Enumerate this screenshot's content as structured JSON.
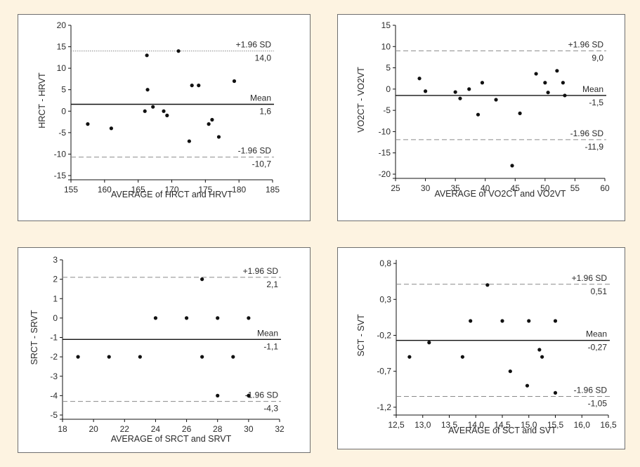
{
  "chart_data": [
    {
      "type": "scatter",
      "xlabel": "AVERAGE of HRCT and HRVT",
      "ylabel": "HRCT - HRVT",
      "xlim": [
        155,
        185
      ],
      "ylim": [
        -15,
        20
      ],
      "xticks": [
        "155",
        "160",
        "165",
        "170",
        "175",
        "180",
        "185"
      ],
      "yticks": [
        "20",
        "15",
        "10",
        "5",
        "0",
        "-5",
        "-10",
        "-15"
      ],
      "x": [
        157.5,
        161,
        166,
        166.3,
        166.4,
        167.2,
        168.8,
        169.3,
        171,
        172.6,
        173,
        174,
        175.5,
        176,
        177,
        179.3
      ],
      "y": [
        -3,
        -4,
        0,
        13,
        5,
        1,
        0,
        -1,
        14,
        -7,
        6,
        6,
        -3,
        -2,
        -6,
        7
      ],
      "lines": [
        {
          "name": "+1.96 SD",
          "value_label": "14,0",
          "value": 14.0,
          "style": "dotted"
        },
        {
          "name": "Mean",
          "value_label": "1,6",
          "value": 1.6,
          "style": "solid"
        },
        {
          "name": "-1.96 SD",
          "value_label": "-10,7",
          "value": -10.7,
          "style": "dashed"
        }
      ]
    },
    {
      "type": "scatter",
      "xlabel": "AVERAGE of VO2CT and VO2VT",
      "ylabel": "VO2CT - VO2VT",
      "xlim": [
        25,
        60
      ],
      "ylim": [
        -20,
        15
      ],
      "xticks": [
        "25",
        "30",
        "35",
        "40",
        "45",
        "50",
        "55",
        "60"
      ],
      "yticks": [
        "15",
        "10",
        "5",
        "0",
        "-5",
        "-10",
        "-15",
        "-20"
      ],
      "x": [
        29,
        30,
        35,
        35.8,
        37.3,
        38.8,
        39.5,
        41.8,
        44.5,
        45.8,
        48.5,
        50,
        50.5,
        52,
        53,
        53.3
      ],
      "y": [
        2.5,
        -0.5,
        -0.7,
        -2.2,
        0,
        -6,
        1.5,
        -2.5,
        -18,
        -5.7,
        3.6,
        1.5,
        -0.8,
        4.3,
        1.5,
        -1.5
      ],
      "lines": [
        {
          "name": "+1.96 SD",
          "value_label": "9,0",
          "value": 9.0,
          "style": "dashed"
        },
        {
          "name": "Mean",
          "value_label": "-1,5",
          "value": -1.5,
          "style": "solid"
        },
        {
          "name": "-1.96 SD",
          "value_label": "-11,9",
          "value": -11.9,
          "style": "dashed"
        }
      ]
    },
    {
      "type": "scatter",
      "xlabel": "AVERAGE of SRCT and SRVT",
      "ylabel": "SRCT - SRVT",
      "xlim": [
        18,
        32
      ],
      "ylim": [
        -5,
        3
      ],
      "xticks": [
        "18",
        "20",
        "22",
        "24",
        "26",
        "28",
        "30",
        "32"
      ],
      "yticks": [
        "3",
        "2",
        "1",
        "0",
        "-1",
        "-2",
        "-3",
        "-4",
        "-5"
      ],
      "x": [
        19,
        21,
        23,
        24,
        26,
        27,
        27,
        28,
        28,
        29,
        30,
        30
      ],
      "y": [
        -2,
        -2,
        -2,
        0,
        0,
        2,
        -2,
        0,
        -4,
        -2,
        0,
        -4
      ],
      "lines": [
        {
          "name": "+1.96 SD",
          "value_label": "2,1",
          "value": 2.1,
          "style": "dashed"
        },
        {
          "name": "Mean",
          "value_label": "-1,1",
          "value": -1.1,
          "style": "solid"
        },
        {
          "name": "-1.96 SD",
          "value_label": "-4,3",
          "value": -4.3,
          "style": "dashed"
        }
      ]
    },
    {
      "type": "scatter",
      "xlabel": "AVERAGE of SCT and SVT",
      "ylabel": "SCT - SVT",
      "xlim": [
        12.5,
        16.5
      ],
      "ylim": [
        -1.25,
        0.85
      ],
      "xticks": [
        "12,5",
        "13,0",
        "13,5",
        "14,0",
        "14,5",
        "15,0",
        "15,5",
        "16,0",
        "16,5"
      ],
      "ytick_values": [
        0.8,
        0.3,
        -0.2,
        -0.7,
        -1.2
      ],
      "yticks": [
        "0,8",
        "0,3",
        "-0,2",
        "-0,7",
        "-1,2"
      ],
      "x": [
        12.75,
        13.12,
        13.75,
        13.9,
        14.22,
        14.5,
        14.65,
        14.97,
        15,
        15.2,
        15.25,
        15.5,
        15.5
      ],
      "y": [
        -0.5,
        -0.3,
        -0.5,
        0,
        0.5,
        0,
        -0.7,
        -0.9,
        0,
        -0.4,
        -0.5,
        0,
        -1
      ],
      "lines": [
        {
          "name": "+1.96 SD",
          "value_label": "0,51",
          "value": 0.51,
          "style": "dashed"
        },
        {
          "name": "Mean",
          "value_label": "-0,27",
          "value": -0.27,
          "style": "solid"
        },
        {
          "name": "-1.96 SD",
          "value_label": "-1,05",
          "value": -1.05,
          "style": "dashed"
        }
      ]
    }
  ],
  "colors": {
    "background": "#fdf3e1",
    "panel": "#ffffff",
    "ink": "#111111",
    "dashed_line": "#8a8a8a",
    "dotted_line": "#888888"
  }
}
